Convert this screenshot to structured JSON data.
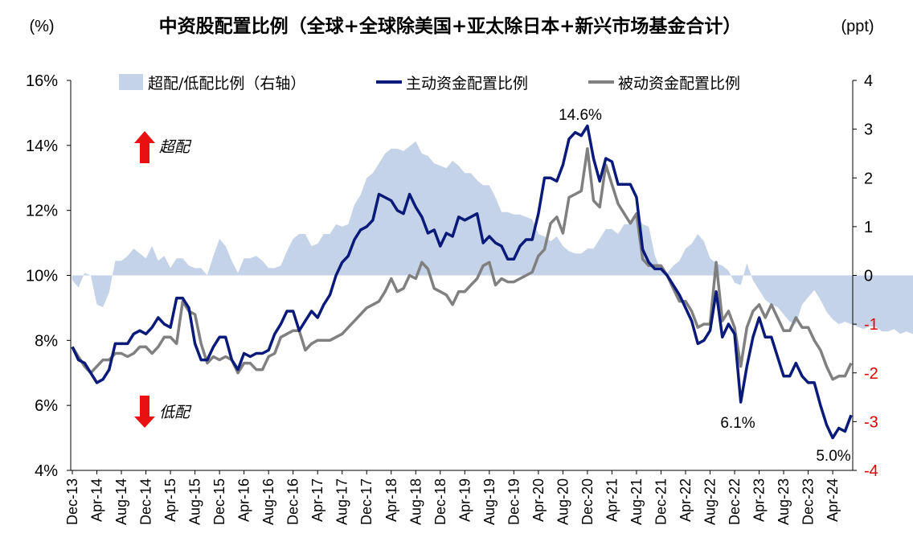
{
  "chart_data": {
    "type": "line",
    "title": "中资股配置比例（全球+全球除美国+亚太除日本+新兴市场基金合计）",
    "left_unit": "(%)",
    "right_unit": "(ppt)",
    "y_left": {
      "min": 4,
      "max": 16,
      "ticks": [
        "4%",
        "6%",
        "8%",
        "10%",
        "12%",
        "14%",
        "16%"
      ],
      "values": [
        4,
        6,
        8,
        10,
        12,
        14,
        16
      ]
    },
    "y_right": {
      "min": -4,
      "max": 4,
      "ticks": [
        "4",
        "3",
        "2",
        "1",
        "0",
        "-1",
        "-2",
        "-3",
        "-4"
      ],
      "values": [
        4,
        3,
        2,
        1,
        0,
        -1,
        -2,
        -3,
        -4
      ],
      "negative_color": "#e00000"
    },
    "x_ticks": [
      "Dec-13",
      "Apr-14",
      "Aug-14",
      "Dec-14",
      "Apr-15",
      "Aug-15",
      "Dec-15",
      "Apr-16",
      "Aug-16",
      "Dec-16",
      "Apr-17",
      "Aug-17",
      "Dec-17",
      "Apr-18",
      "Aug-18",
      "Dec-18",
      "Apr-19",
      "Aug-19",
      "Dec-19",
      "Apr-20",
      "Aug-20",
      "Dec-20",
      "Apr-21",
      "Aug-21",
      "Dec-21",
      "Apr-22",
      "Aug-22",
      "Dec-22",
      "Apr-23",
      "Aug-23",
      "Dec-23",
      "Apr-24"
    ],
    "x_start": "Dec-13",
    "legend": {
      "placement": "top",
      "entries": [
        "超配/低配比例（右轴）",
        "主动资金配置比例",
        "被动资金配置比例"
      ]
    },
    "colors": {
      "area": "#c5d3e8",
      "active": "#0a1a7a",
      "passive": "#808080",
      "arrow": "#e81010",
      "annotation": "#000000"
    },
    "annotations": [
      "14.6%",
      "6.1%",
      "5.0%"
    ],
    "side_labels": {
      "over": "超配",
      "under": "低配"
    },
    "series": [
      {
        "name": "超配/低配比例（右轴）",
        "axis": "right",
        "kind": "area",
        "values": [
          -0.1,
          -0.25,
          0.05,
          0,
          -0.6,
          -0.65,
          -0.35,
          0.3,
          0.3,
          0.4,
          0.55,
          0.45,
          0.35,
          0.6,
          0.3,
          0.4,
          0.15,
          0.35,
          0.35,
          0.2,
          0.15,
          0.15,
          0,
          0.4,
          0.75,
          0.6,
          0.3,
          0.05,
          0.35,
          0.35,
          0.4,
          0.3,
          0.15,
          0.15,
          0.2,
          0.5,
          0.75,
          0.85,
          0.85,
          0.6,
          0.65,
          0.85,
          0.85,
          1.05,
          1.0,
          1.05,
          1.45,
          1.65,
          2.0,
          2.1,
          2.3,
          2.5,
          2.6,
          2.6,
          2.55,
          2.65,
          2.75,
          2.5,
          2.45,
          2.3,
          2.25,
          2.2,
          2.35,
          2.25,
          2.1,
          2.1,
          1.95,
          1.85,
          1.85,
          1.6,
          1.3,
          1.3,
          1.25,
          1.25,
          1.2,
          1.15,
          0.85,
          0.8,
          0.7,
          0.8,
          0.6,
          0.5,
          0.45,
          0.45,
          0.55,
          0.55,
          0.75,
          0.95,
          0.95,
          0.85,
          1.05,
          1.05,
          1.25,
          1.05,
          1.0,
          0.4,
          0.1,
          0.05,
          0.2,
          0.3,
          0.55,
          0.65,
          0.85,
          0.7,
          0.35,
          0.25,
          0.2,
          0.1,
          -0.15,
          -0.2,
          0.25,
          -0.1,
          -0.3,
          -0.5,
          -0.6,
          -0.65,
          -0.8,
          -0.95,
          -1.0,
          -0.6,
          -0.45,
          -0.3,
          -0.5,
          -0.75,
          -0.9,
          -1.0,
          -0.95,
          -1.0,
          -1.05,
          -1.1,
          -1.05,
          -1.05,
          -1.15,
          -1.15,
          -1.1,
          -1.2,
          -1.15,
          -1.2,
          -1.2
        ]
      },
      {
        "name": "主动资金配置比例",
        "axis": "left",
        "kind": "line",
        "values": [
          7.8,
          7.4,
          7.3,
          7.0,
          6.7,
          6.8,
          7.1,
          7.9,
          7.9,
          7.9,
          8.2,
          8.3,
          8.2,
          8.4,
          8.7,
          8.5,
          8.4,
          9.3,
          9.3,
          9.0,
          7.9,
          7.4,
          7.4,
          7.8,
          8.1,
          8.1,
          7.4,
          7.1,
          7.6,
          7.5,
          7.6,
          7.6,
          7.7,
          8.2,
          8.5,
          8.9,
          8.9,
          8.3,
          8.6,
          8.9,
          8.7,
          9.1,
          9.4,
          10.0,
          10.4,
          10.6,
          11.1,
          11.4,
          11.5,
          11.7,
          12.5,
          12.4,
          12.3,
          12.0,
          11.9,
          12.5,
          12.1,
          11.8,
          11.3,
          11.4,
          10.9,
          11.3,
          11.2,
          11.8,
          11.7,
          11.8,
          11.9,
          11.0,
          11.2,
          11.0,
          10.9,
          10.5,
          10.5,
          10.9,
          11.1,
          11.1,
          11.9,
          13.0,
          13.0,
          12.9,
          13.4,
          14.2,
          14.4,
          14.3,
          14.6,
          13.6,
          12.9,
          13.6,
          13.5,
          12.8,
          12.8,
          12.8,
          12.4,
          10.8,
          10.4,
          10.2,
          10.2,
          10.0,
          9.7,
          9.4,
          9.0,
          8.6,
          7.9,
          8.0,
          8.3,
          9.5,
          8.1,
          8.5,
          8.2,
          6.1,
          7.2,
          8.1,
          8.7,
          8.1,
          8.1,
          7.5,
          6.9,
          6.9,
          7.3,
          6.9,
          6.7,
          6.7,
          6.0,
          5.4,
          5.0,
          5.3,
          5.2,
          5.7
        ]
      },
      {
        "name": "被动资金配置比例",
        "axis": "left",
        "kind": "line",
        "values": [
          7.8,
          7.5,
          7.2,
          7.0,
          7.2,
          7.4,
          7.4,
          7.6,
          7.6,
          7.5,
          7.6,
          7.8,
          7.8,
          7.6,
          7.8,
          8.1,
          8.1,
          7.9,
          9.2,
          8.9,
          8.8,
          7.9,
          7.3,
          7.5,
          7.4,
          7.5,
          7.4,
          7.0,
          7.3,
          7.3,
          7.1,
          7.1,
          7.5,
          7.6,
          8.1,
          8.2,
          8.3,
          8.3,
          7.7,
          7.9,
          8.0,
          8.0,
          8.0,
          8.1,
          8.2,
          8.4,
          8.6,
          8.8,
          9.0,
          9.1,
          9.2,
          9.5,
          9.9,
          9.5,
          9.6,
          10.0,
          9.9,
          10.4,
          10.2,
          9.6,
          9.5,
          9.4,
          9.1,
          9.5,
          9.5,
          9.7,
          9.9,
          10.3,
          10.4,
          9.7,
          9.9,
          9.8,
          9.8,
          9.9,
          10.0,
          10.1,
          10.6,
          10.8,
          11.6,
          11.8,
          11.3,
          12.4,
          12.5,
          12.6,
          13.9,
          12.3,
          12.1,
          13.4,
          12.8,
          12.2,
          11.9,
          11.6,
          11.9,
          10.5,
          10.3,
          10.3,
          10.3,
          10.0,
          9.6,
          9.2,
          9.2,
          8.9,
          8.4,
          8.5,
          8.5,
          10.4,
          8.6,
          8.9,
          8.4,
          7.2,
          8.4,
          8.9,
          9.1,
          8.7,
          9.1,
          8.7,
          8.3,
          8.3,
          8.7,
          8.4,
          8.4,
          8.0,
          7.7,
          7.2,
          6.8,
          6.9,
          6.9,
          7.3
        ]
      }
    ]
  }
}
